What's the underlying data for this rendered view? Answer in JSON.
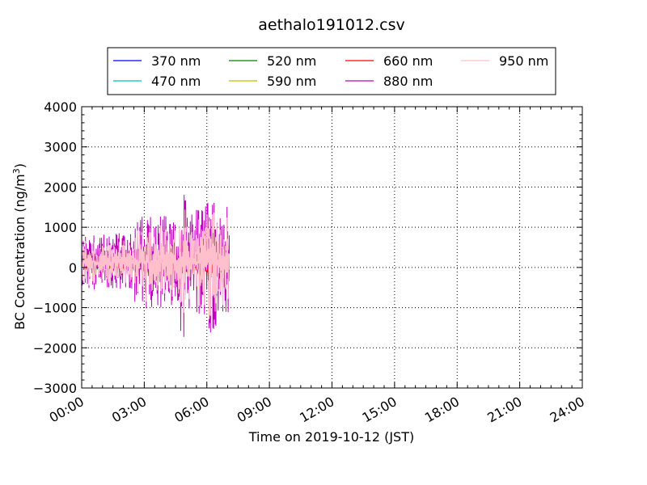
{
  "chart_data": {
    "type": "line",
    "title": "aethalo191012.csv",
    "xlabel": "Time on 2019-10-12 (JST)",
    "ylabel": "BC Concentration (ng/m",
    "ylabel_superscript": "3",
    "ylabel_close": ")",
    "xlim": [
      "00:00",
      "24:00"
    ],
    "ylim": [
      -3000,
      4000
    ],
    "x_tick_labels": [
      "00:00",
      "03:00",
      "06:00",
      "09:00",
      "12:00",
      "15:00",
      "18:00",
      "21:00",
      "24:00"
    ],
    "y_ticks": [
      -3000,
      -2000,
      -1000,
      0,
      1000,
      2000,
      3000,
      4000
    ],
    "y_tick_labels": [
      "−3000",
      "−2000",
      "−1000",
      "0",
      "1000",
      "2000",
      "3000",
      "4000"
    ],
    "grid": true,
    "grid_style": "dotted",
    "legend_position": "top-center",
    "data_end": "07:05",
    "series": [
      {
        "name": "370 nm",
        "color": "#0000ff",
        "amplitude": 0.35,
        "seed": 3
      },
      {
        "name": "470 nm",
        "color": "#00bfbf",
        "amplitude": 0.4,
        "seed": 5
      },
      {
        "name": "520 nm",
        "color": "#008000",
        "amplitude": 0.45,
        "seed": 7
      },
      {
        "name": "590 nm",
        "color": "#bfbf00",
        "amplitude": 0.5,
        "seed": 11
      },
      {
        "name": "660 nm",
        "color": "#ff0000",
        "amplitude": 0.6,
        "seed": 13
      },
      {
        "name": "880 nm",
        "color": "#bf00bf",
        "amplitude": 1.0,
        "seed": 17
      },
      {
        "name": "950 nm",
        "color": "#ffc0cb",
        "amplitude": 0.85,
        "seed": 19
      }
    ]
  }
}
